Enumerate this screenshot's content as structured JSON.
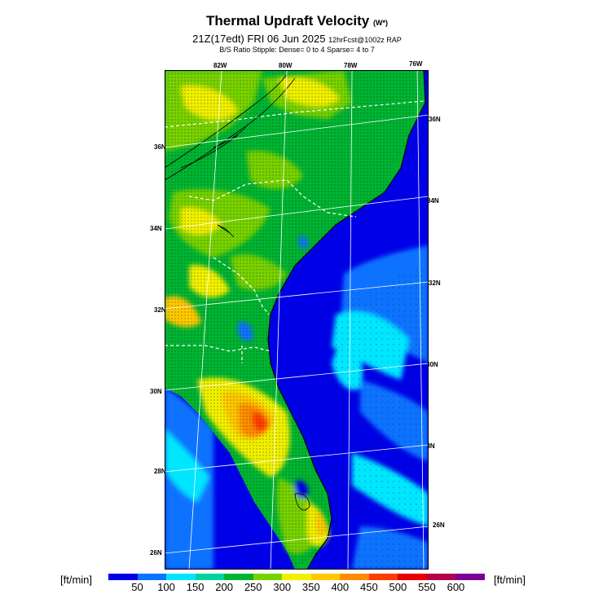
{
  "header": {
    "title": "Thermal Updraft Velocity",
    "title_unit": "(W*)",
    "valid_time": "21Z(17edt) FRI 06 Jun 2025",
    "forecast_info": "12hrFcst@1002z RAP",
    "stipple_note": "B/S Ratio Stipple:  Dense= 0 to 4  Sparse= 4 to 7"
  },
  "map": {
    "lon_labels": [
      "82W",
      "80W",
      "78W",
      "76W"
    ],
    "lat_labels_left": [
      "36N",
      "34N",
      "32N",
      "30N",
      "28N",
      "26N"
    ],
    "lat_labels_right": [
      "36N",
      "34N",
      "32N",
      "30N",
      "28N",
      "26N"
    ]
  },
  "colorbar": {
    "unit_left": "[ft/min]",
    "unit_right": "[ft/min]",
    "ticks": [
      "50",
      "100",
      "150",
      "200",
      "250",
      "300",
      "350",
      "400",
      "450",
      "500",
      "550",
      "600"
    ],
    "colors": [
      "#0000e6",
      "#0a73ff",
      "#00e6ff",
      "#00d2a0",
      "#00b432",
      "#78d200",
      "#f0f000",
      "#ffc800",
      "#ff8c00",
      "#ff3c00",
      "#e60000",
      "#b4004b",
      "#7d0096"
    ]
  }
}
